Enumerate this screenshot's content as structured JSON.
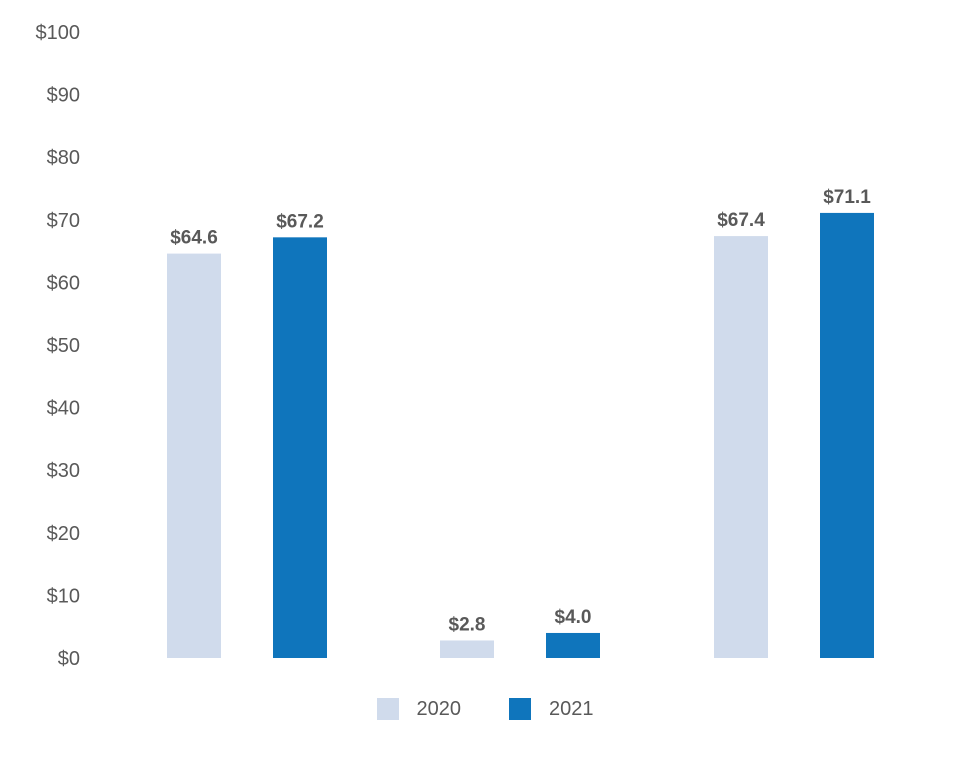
{
  "chart_data": {
    "type": "bar",
    "categories": [
      "",
      "",
      ""
    ],
    "series": [
      {
        "name": "2020",
        "color": "#D0DBEC",
        "values": [
          64.6,
          2.8,
          67.4
        ],
        "labels": [
          "$64.6",
          "$2.8",
          "$67.4"
        ]
      },
      {
        "name": "2021",
        "color": "#0F75BC",
        "values": [
          67.2,
          4.0,
          71.1
        ],
        "labels": [
          "$67.2",
          "$4.0",
          "$71.1"
        ]
      }
    ],
    "y_ticks": [
      "$0",
      "$10",
      "$20",
      "$30",
      "$40",
      "$50",
      "$60",
      "$70",
      "$80",
      "$90",
      "$100"
    ],
    "ylim": [
      0,
      100
    ],
    "ystep": 10,
    "grid": false,
    "legend_position": "bottom",
    "title": "",
    "xlabel": "",
    "ylabel": ""
  }
}
